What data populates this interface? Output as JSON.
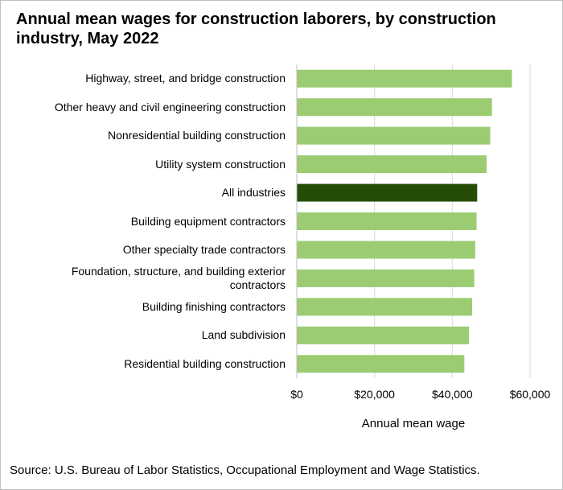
{
  "chart_data": {
    "type": "bar",
    "orientation": "horizontal",
    "title": "Annual mean wages for construction laborers, by construction industry, May 2022",
    "xlabel": "Annual mean wage",
    "ylabel": "",
    "categories": [
      "Highway, street, and bridge construction",
      "Other heavy and civil engineering construction",
      "Nonresidential building construction",
      "Utility system construction",
      "All industries",
      "Building equipment contractors",
      "Other specialty trade contractors",
      "Foundation, structure, and building exterior contractors",
      "Building finishing contractors",
      "Land subdivision",
      "Residential building construction"
    ],
    "values": [
      55250,
      50100,
      49650,
      48750,
      46300,
      46150,
      45800,
      45550,
      45000,
      44200,
      43000
    ],
    "xlim": [
      0,
      60000
    ],
    "xticks": [
      "$0",
      "$20,000",
      "$40,000",
      "$60,000"
    ],
    "grid": "vertical",
    "legend": "none",
    "colors": {
      "bar": "#9bcc72",
      "highlight": "#254d07",
      "grid": "#d9d9d9",
      "axis": "#bfbfbf"
    },
    "highlight_category": "All industries"
  },
  "source": "Source: U.S. Bureau of Labor Statistics, Occupational Employment  and Wage Statistics."
}
